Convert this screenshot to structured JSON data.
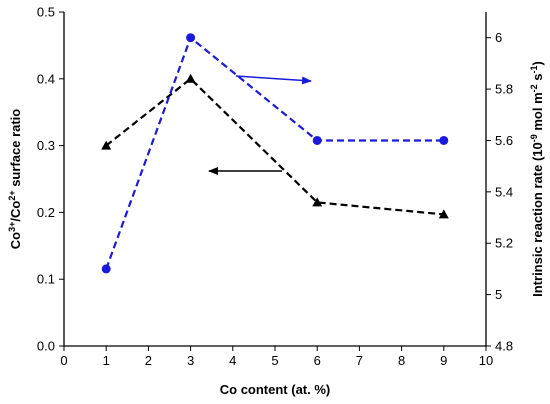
{
  "chart_data": {
    "type": "line",
    "x": [
      1,
      3,
      6,
      9
    ],
    "xlabel": "Co content (at. %)",
    "xlim": [
      0,
      10
    ],
    "xticks": [
      "0",
      "1",
      "2",
      "3",
      "4",
      "5",
      "6",
      "7",
      "8",
      "9",
      "10"
    ],
    "ylabel_left": {
      "prefix": "Co",
      "sup1": "3+",
      "mid": "/Co",
      "sup2": "2+",
      "suffix": " surface ratio"
    },
    "ylim_left": [
      0.0,
      0.5
    ],
    "yticks_left": [
      "0.0",
      "0.1",
      "0.2",
      "0.3",
      "0.4",
      "0.5"
    ],
    "ylabel_right": {
      "prefix": "Intrinsic reaction rate (10",
      "sup1": "-9",
      "mid": " mol m",
      "sup2": "-2",
      "mid2": " s",
      "sup3": "-1",
      "suffix": ")"
    },
    "ylim_right": [
      4.8,
      6.1
    ],
    "yticks_right": [
      "4.8",
      "5",
      "5.2",
      "5.4",
      "5.6",
      "5.8",
      "6"
    ],
    "grid": false,
    "legend": "none",
    "series": [
      {
        "axis": "left",
        "marker": "triangle",
        "line_style": "dashed",
        "color": "#000000",
        "values": [
          0.3,
          0.4,
          0.215,
          0.197
        ]
      },
      {
        "axis": "right",
        "marker": "circle",
        "line_style": "dashed",
        "color": "#1a1adc",
        "values": [
          5.1,
          6.0,
          5.6,
          5.6
        ]
      }
    ],
    "annotations": [
      {
        "kind": "arrow",
        "points_to": "right-axis",
        "color": "#1a1adc"
      },
      {
        "kind": "arrow",
        "points_to": "left-axis",
        "color": "#000000"
      }
    ]
  }
}
